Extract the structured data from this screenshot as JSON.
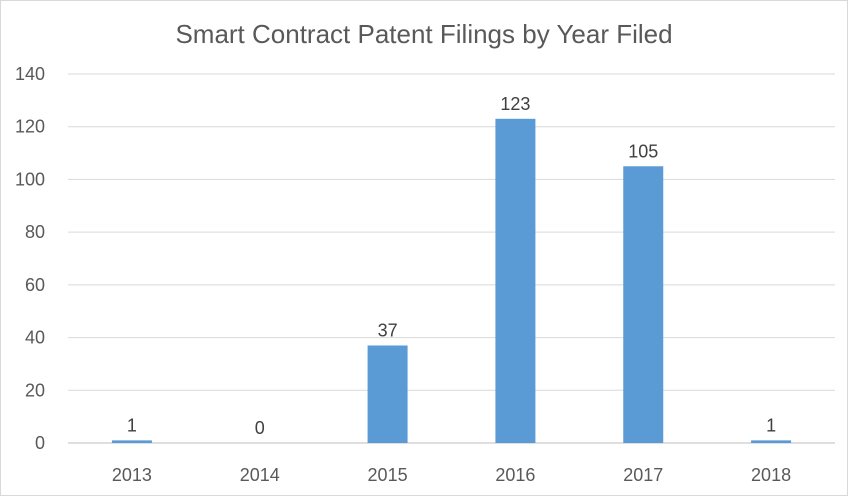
{
  "chart_data": {
    "type": "bar",
    "title": "Smart Contract Patent Filings by Year Filed",
    "xlabel": "",
    "ylabel": "",
    "categories": [
      "2013",
      "2014",
      "2015",
      "2016",
      "2017",
      "2018"
    ],
    "values": [
      1,
      0,
      37,
      123,
      105,
      1
    ],
    "ylim": [
      0,
      140
    ],
    "yticks": [
      0,
      20,
      40,
      60,
      80,
      100,
      120,
      140
    ],
    "grid": true,
    "legend": "none",
    "data_labels": true,
    "colors": {
      "bar": "#5B9BD5"
    }
  }
}
